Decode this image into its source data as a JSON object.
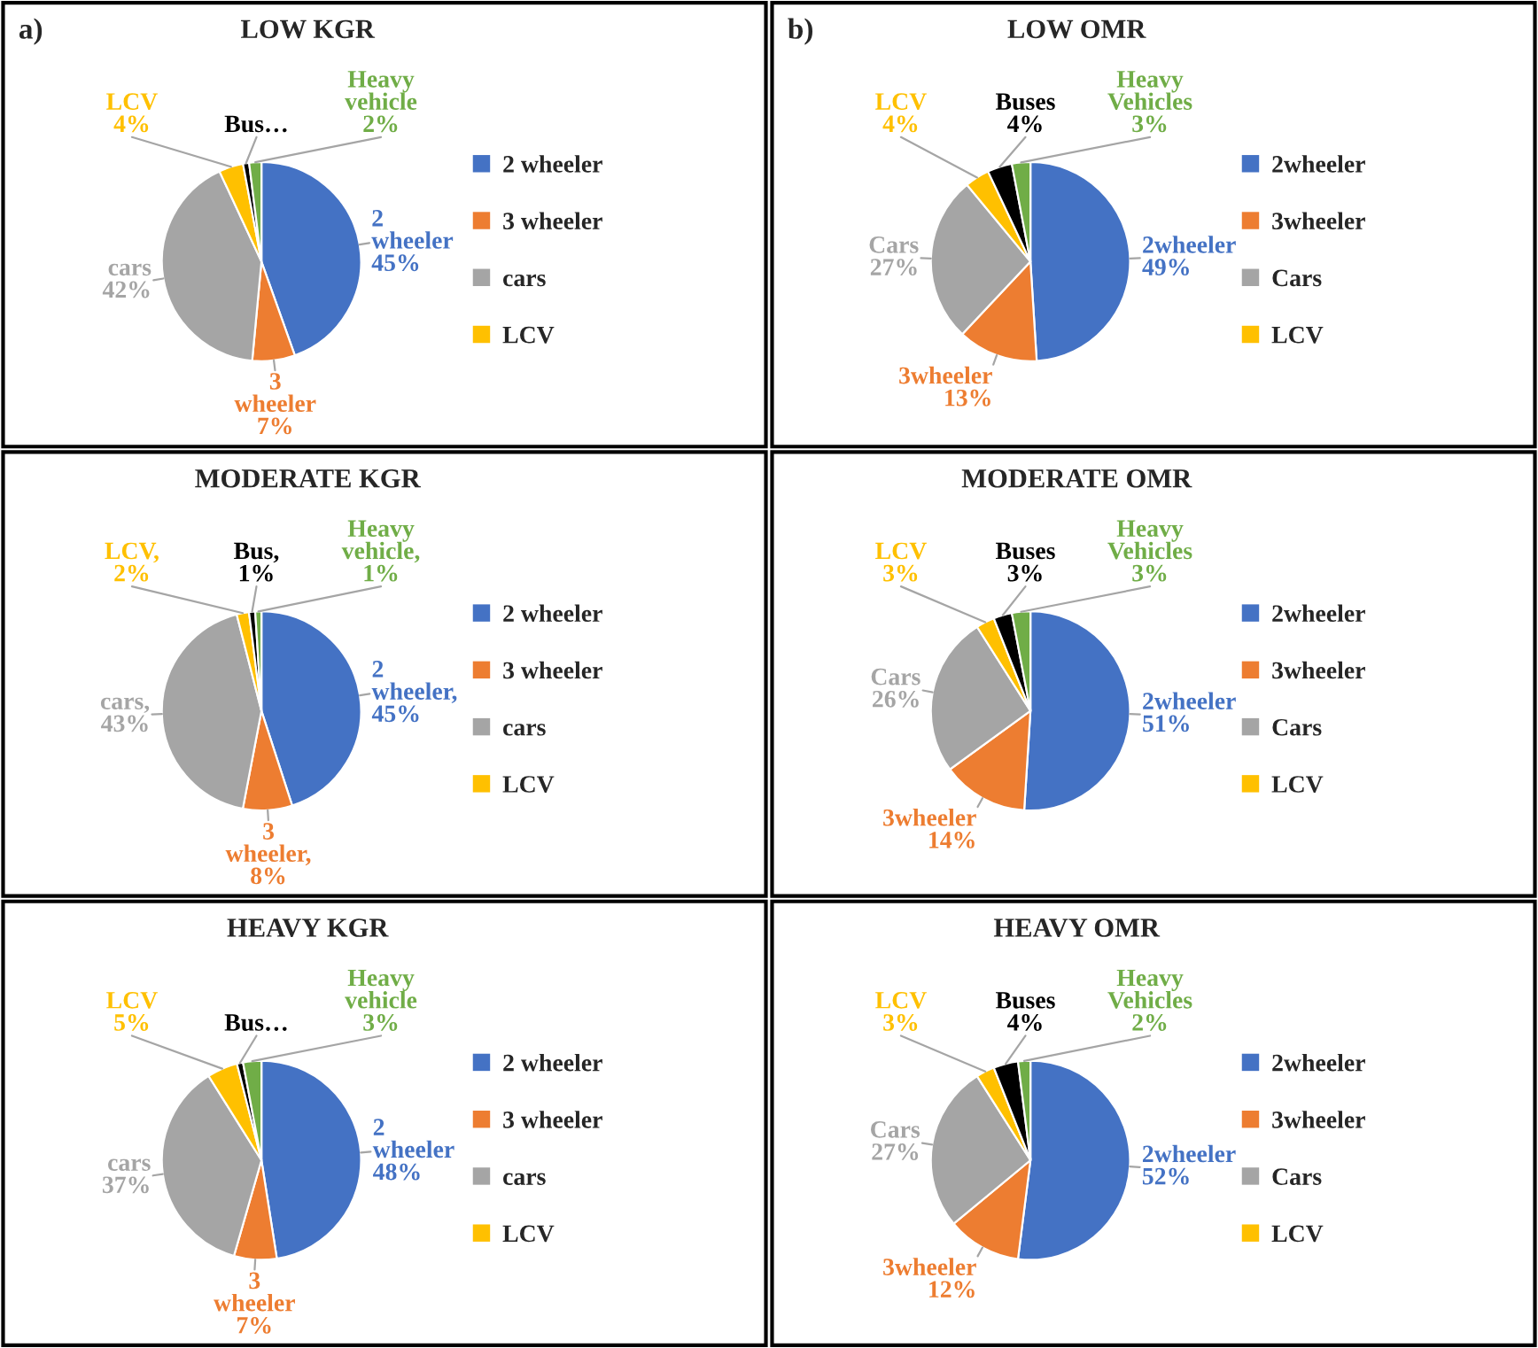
{
  "chart_data": [
    {
      "type": "pie",
      "title": "LOW KGR",
      "annotations": [
        "a)"
      ],
      "legend": "right",
      "categories": [
        "2 wheeler",
        "3 wheeler",
        "cars",
        "LCV",
        null,
        null
      ],
      "values": [
        45,
        7,
        42,
        4,
        1,
        2
      ],
      "value_labels": [
        "2 wheeler 45%",
        "3 wheeler 7%",
        "cars 42%",
        "LCV 4%",
        "Bus…",
        "Heavy vehicle 2%"
      ],
      "colors": [
        "#4472c4",
        "#ed7d31",
        "#a5a5a5",
        "#ffc000",
        "#000000",
        "#70ad47"
      ]
    },
    {
      "type": "pie",
      "title": "LOW OMR",
      "annotations": [
        "b)"
      ],
      "legend": "right",
      "categories": [
        "2wheeler",
        "3wheeler",
        "Cars",
        "LCV",
        null,
        null
      ],
      "values": [
        49,
        13,
        27,
        4,
        4,
        3
      ],
      "value_labels": [
        "2wheeler 49%",
        "3wheeler 13%",
        "Cars 27%",
        "LCV 4%",
        "Buses 4%",
        "Heavy Vehicles 3%"
      ],
      "colors": [
        "#4472c4",
        "#ed7d31",
        "#a5a5a5",
        "#ffc000",
        "#000000",
        "#70ad47"
      ]
    },
    {
      "type": "pie",
      "title": "MODERATE KGR",
      "legend": "right",
      "categories": [
        "2 wheeler",
        "3 wheeler",
        "cars",
        "LCV",
        null,
        null
      ],
      "values": [
        45,
        8,
        43,
        2,
        1,
        1
      ],
      "value_labels": [
        "2 wheeler, 45%",
        "3 wheeler, 8%",
        "cars, 43%",
        "LCV, 2%",
        "Bus, 1%",
        "Heavy vehicle, 1%"
      ],
      "colors": [
        "#4472c4",
        "#ed7d31",
        "#a5a5a5",
        "#ffc000",
        "#000000",
        "#70ad47"
      ]
    },
    {
      "type": "pie",
      "title": "MODERATE OMR",
      "legend": "right",
      "categories": [
        "2wheeler",
        "3wheeler",
        "Cars",
        "LCV",
        null,
        null
      ],
      "values": [
        51,
        14,
        26,
        3,
        3,
        3
      ],
      "value_labels": [
        "2wheeler 51%",
        "3wheeler 14%",
        "Cars 26%",
        "LCV 3%",
        "Buses 3%",
        "Heavy Vehicles 3%"
      ],
      "colors": [
        "#4472c4",
        "#ed7d31",
        "#a5a5a5",
        "#ffc000",
        "#000000",
        "#70ad47"
      ]
    },
    {
      "type": "pie",
      "title": "HEAVY KGR",
      "legend": "right",
      "categories": [
        "2 wheeler",
        "3 wheeler",
        "cars",
        "LCV",
        null,
        null
      ],
      "values": [
        48,
        7,
        37,
        5,
        1,
        3
      ],
      "value_labels": [
        "2 wheeler 48%",
        "3 wheeler 7%",
        "cars 37%",
        "LCV 5%",
        "Bus…",
        "Heavy vehicle 3%"
      ],
      "colors": [
        "#4472c4",
        "#ed7d31",
        "#a5a5a5",
        "#ffc000",
        "#000000",
        "#70ad47"
      ]
    },
    {
      "type": "pie",
      "title": "HEAVY OMR",
      "legend": "right",
      "categories": [
        "2wheeler",
        "3wheeler",
        "Cars",
        "LCV",
        null,
        null
      ],
      "values": [
        52,
        12,
        27,
        3,
        4,
        2
      ],
      "value_labels": [
        "2wheeler 52%",
        "3wheeler 12%",
        "Cars 27%",
        "LCV 3%",
        "Buses 4%",
        "Heavy Vehicles 2%"
      ],
      "colors": [
        "#4472c4",
        "#ed7d31",
        "#a5a5a5",
        "#ffc000",
        "#000000",
        "#70ad47"
      ]
    }
  ]
}
